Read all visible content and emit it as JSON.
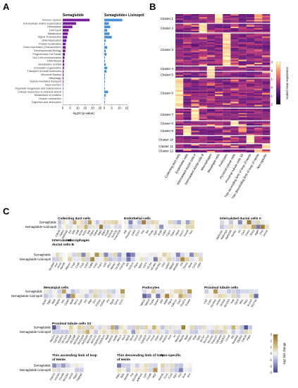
{
  "panels": {
    "A": "A",
    "B": "B",
    "C": "C"
  },
  "chart_data": [
    {
      "type": "bar",
      "panel": "A",
      "categories": [
        "Immune System",
        "Extracellular matrix organization",
        "Hemostasis",
        "Cell Cycle",
        "Metabolism",
        "Signal Transduction",
        "DNA Replication",
        "Protein localization",
        "Gene expression (Transcription)",
        "Developmental Biology",
        "Programmed Cell Death",
        "Cell-Cell communication",
        "DNA Repair",
        "Metabolism of RNA",
        "Chromatin organization",
        "Transport of small molecules",
        "Neuronal System",
        "Mitophagy",
        "Vesicle-mediated transport",
        "Reproduction",
        "Organelle biogenesis and maintenance",
        "Cellular responses to external stimuli",
        "Metabolism of proteins",
        "Muscle contraction",
        "Digestion and absorption"
      ],
      "series": [
        {
          "name": "Semaglutide",
          "color": "#7b1fa2",
          "values": [
            18,
            9,
            6.5,
            4,
            3.5,
            3,
            2.5,
            2,
            2,
            1.8,
            1.5,
            1.2,
            1,
            1,
            0.8,
            0.6,
            0.6,
            0.5,
            0.4,
            0.3,
            0.3,
            0.2,
            0.2,
            0.1,
            0.1
          ]
        },
        {
          "name": "Semaglutide+ Lisinopril",
          "color": "#4a90d9",
          "values": [
            12,
            3,
            4,
            2,
            3.5,
            5,
            1,
            0.5,
            2,
            1,
            1.5,
            0.5,
            0.5,
            1,
            2,
            1.5,
            0.5,
            0.5,
            0.5,
            0.2,
            0.5,
            2.5,
            1,
            0.3,
            0.5
          ]
        }
      ],
      "xlabel": "-log10 (p-value)",
      "xticks": [
        "0",
        "5",
        "10",
        "15",
        "20",
        "25"
      ],
      "xticks_right": [
        "0",
        "5",
        "10",
        "15"
      ],
      "xlim": [
        0,
        25
      ],
      "xlim_right": [
        0,
        15
      ]
    },
    {
      "type": "heatmap",
      "panel": "B",
      "clusters": [
        "Cluster 1",
        "Cluster 2",
        "Cluster 3",
        "Cluster 4",
        "Cluster 5",
        "Cluster 6",
        "Cluster 7",
        "Cluster 8",
        "Cluster 9",
        "Cluster 10",
        "Cluster 11",
        "Cluster 12"
      ],
      "cluster_rows": [
        6,
        6,
        22,
        3,
        4,
        20,
        8,
        3,
        6,
        5,
        3,
        2
      ],
      "columns": [
        "Collecting duct cells",
        "Endothelial cells",
        "Intercalated ductal cells A",
        "Intercalated ductal cells B",
        "Macrophages",
        "Mesangial cells",
        "Podocytes",
        "Proximal tubule cells",
        "Proximal tubule cells S3",
        "Thin ascending limb of loop of Henle",
        "Thin descending limb of loop of Henle",
        "Non-specific"
      ],
      "hot_columns": [
        5,
        3,
        6,
        4,
        4,
        0,
        2,
        7,
        1,
        9,
        11,
        10
      ],
      "legend_title": "Scaled mean expression",
      "legend_ticks": [
        "3",
        "2",
        "1",
        "0",
        "-1",
        "-2"
      ],
      "range": [
        -2,
        3
      ]
    },
    {
      "type": "heatmap",
      "panel": "C",
      "row_labels": [
        "Semaglutide",
        "Semaglutide+Lisinopril"
      ],
      "legend_title": "log2 fold change",
      "legend_ticks": [
        "3",
        "2",
        "1",
        "0",
        "-1",
        "-2",
        "-3"
      ],
      "range": [
        -3,
        3
      ],
      "groups": [
        {
          "title": "Collecting duct cells",
          "genes": [
            "Cdh16",
            "Gata3",
            "Hsd11b2",
            "Ehf",
            "Elf5",
            "Krt8",
            "Krt18",
            "Krt19",
            "Mal",
            "Cldn4",
            "Cldn8",
            "Aqp2",
            "Aqp3",
            "Fxyd4",
            "Scnn1b",
            "Scnn1g",
            "Tmem52b"
          ]
        },
        {
          "title": "Endothelial cells",
          "genes": [
            "Kdr",
            "Pecam1",
            "Cdh5",
            "Emcn",
            "Flt1",
            "Tek",
            "Plvap",
            "Egfl7",
            "Ehd4",
            "Cd93",
            "Cyyr1",
            "Esam",
            "Ptprb",
            "Sox17",
            "Sox18",
            "Tie1"
          ]
        },
        {
          "title": "Intercalated ductal cells A",
          "genes": [
            "Atp6v1b1",
            "Atp6v1g3",
            "Atp6v0d2",
            "Slc4a1",
            "Kit",
            "Car2",
            "Foxi1",
            "Rhcg",
            "Aqp6",
            "Clnk",
            "Dmrt2"
          ]
        },
        {
          "title": "Intercalated ductal cells B",
          "genes": [
            "Slc26a4",
            "Insrr",
            "Hmx2",
            "Spink8"
          ]
        },
        {
          "title": "Macrophages",
          "genes": [
            "Adgre1",
            "C1qa",
            "C1qb",
            "C1qc",
            "Cd14",
            "Cd68",
            "Csf1r",
            "Fcgr1",
            "Lyz2",
            "Mrc1",
            "Ms4a7",
            "Tyrobp",
            "Fcer1g",
            "Aif1",
            "Cx3cr1",
            "Ptprc",
            "Itgam",
            "Cd74",
            "H2-Aa",
            "H2-Ab1",
            "H2-Eb1",
            "Ctss",
            "Lgals3",
            "Mpeg1",
            "Ms4a6c",
            "Pf4",
            "Trem2",
            "Apoe",
            "Ccl12",
            "Cd52"
          ]
        },
        {
          "title": "Mesangial cells",
          "genes": [
            "Acta2",
            "Tagln",
            "Myl9",
            "Pdgfrb",
            "Des",
            "Gata3",
            "Itga8",
            "Ren1",
            "Postn",
            "Vim",
            "Mgp",
            "Dcn",
            "Col1a1",
            "Col3a1",
            "Ptn",
            "Rgs5",
            "Tpm2",
            "Cnn1"
          ]
        },
        {
          "title": "Podocytes",
          "genes": [
            "Nphs1",
            "Nphs2",
            "Podxl",
            "Synpo",
            "Wt1",
            "Mafb",
            "Ptpro",
            "Cdkn1c",
            "Clic5",
            "Thsd7a",
            "Enpep"
          ]
        },
        {
          "title": "Proximal tubule cells",
          "genes": [
            "Lrp2",
            "Cubn",
            "Slc34a1",
            "Hnf4a",
            "Slc5a2",
            "Slc13a3",
            "Kap",
            "Gpx3",
            "Miox",
            "Fbp1",
            "Acsm2",
            "Slc27a2"
          ]
        },
        {
          "title": "Proximal tubule cells S3",
          "genes": [
            "Atp11a",
            "Cyp7b1",
            "Cyp2e1",
            "Slc7a13",
            "Slc22a6",
            "Slc22a8",
            "Slc22a12",
            "Slc22a19",
            "Slc22a30",
            "Akr1c18",
            "Akr1c21",
            "Cyp4a12a",
            "Cyp4a14",
            "Nat8",
            "Sult1d1",
            "Aadat",
            "Abcc3",
            "Acy3",
            "Agxt2",
            "Bhmt",
            "Ces1f",
            "Cml5",
            "Cyp2j13",
            "Fmo1",
            "Fmo2",
            "Gatm",
            "Hao2",
            "Hrsp12",
            "Inmt",
            "Kl",
            "Mep1a",
            "Mep1b",
            "Ngef",
            "Pdzk1",
            "Rida",
            "Sgk1",
            "Slc7a7",
            "Slc17a3",
            "Slco1a1",
            "Tmem27",
            "Ugt1a6a",
            "Ugt2b37",
            "Umod",
            "Vil1",
            "Xpnpep2",
            "Zfp36l1",
            "Cdh16",
            "Pdk4"
          ]
        },
        {
          "title": "Thin ascending limb of loop of Henle",
          "genes": [
            "Cldn10",
            "Clcnka",
            "Clcnkb",
            "Slc12a1",
            "Umod",
            "Ptgs2",
            "Pappa2"
          ]
        },
        {
          "title": "Thin descending limb of loop of Henle",
          "genes": [
            "Aqp1",
            "Bst1",
            "Sptssb",
            "Fst",
            "Slc14a2",
            "Aldh1a1",
            "Lgr5",
            "Cryab",
            "Jag1"
          ]
        },
        {
          "title": "Non-specific",
          "genes": [
            "Ankrd1",
            "Ccn1",
            "Ccn2",
            "Egr1",
            "Fos",
            "Junb",
            "Ier2"
          ]
        }
      ]
    }
  ]
}
